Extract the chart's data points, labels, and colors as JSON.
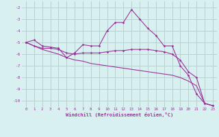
{
  "xlabel": "Windchill (Refroidissement éolien,°C)",
  "x_values": [
    0,
    1,
    2,
    3,
    4,
    5,
    6,
    7,
    8,
    9,
    10,
    11,
    12,
    13,
    14,
    15,
    16,
    17,
    18,
    19,
    20,
    21,
    22,
    23
  ],
  "line1": [
    -5.0,
    -4.8,
    -5.3,
    -5.4,
    -5.5,
    -6.3,
    -5.9,
    -5.2,
    -5.3,
    -5.3,
    -4.0,
    -3.3,
    -3.3,
    -2.2,
    -3.0,
    -3.8,
    -4.4,
    -5.3,
    -5.3,
    -7.0,
    -7.8,
    -9.4,
    -10.2,
    -10.4
  ],
  "line2": [
    -5.0,
    -5.3,
    -5.5,
    -5.5,
    -5.6,
    -5.9,
    -6.0,
    -5.9,
    -5.9,
    -5.9,
    -5.8,
    -5.7,
    -5.7,
    -5.6,
    -5.6,
    -5.6,
    -5.7,
    -5.8,
    -6.0,
    -6.5,
    -7.5,
    -8.0,
    -10.2,
    -10.4
  ],
  "line3": [
    -5.0,
    -5.3,
    -5.6,
    -5.8,
    -6.0,
    -6.3,
    -6.5,
    -6.6,
    -6.8,
    -6.9,
    -7.0,
    -7.1,
    -7.2,
    -7.3,
    -7.4,
    -7.5,
    -7.6,
    -7.7,
    -7.8,
    -8.0,
    -8.3,
    -8.7,
    -10.2,
    -10.4
  ],
  "line_color": "#993399",
  "bg_color": "#d8f0f0",
  "grid_color": "#b8d0d0",
  "ylim": [
    -10.5,
    -1.5
  ],
  "xlim": [
    -0.5,
    23.5
  ],
  "yticks": [
    -10,
    -9,
    -8,
    -7,
    -6,
    -5,
    -4,
    -3,
    -2
  ],
  "xticks": [
    0,
    1,
    2,
    3,
    4,
    5,
    6,
    7,
    8,
    9,
    10,
    11,
    12,
    13,
    14,
    15,
    16,
    17,
    18,
    19,
    20,
    21,
    22,
    23
  ]
}
